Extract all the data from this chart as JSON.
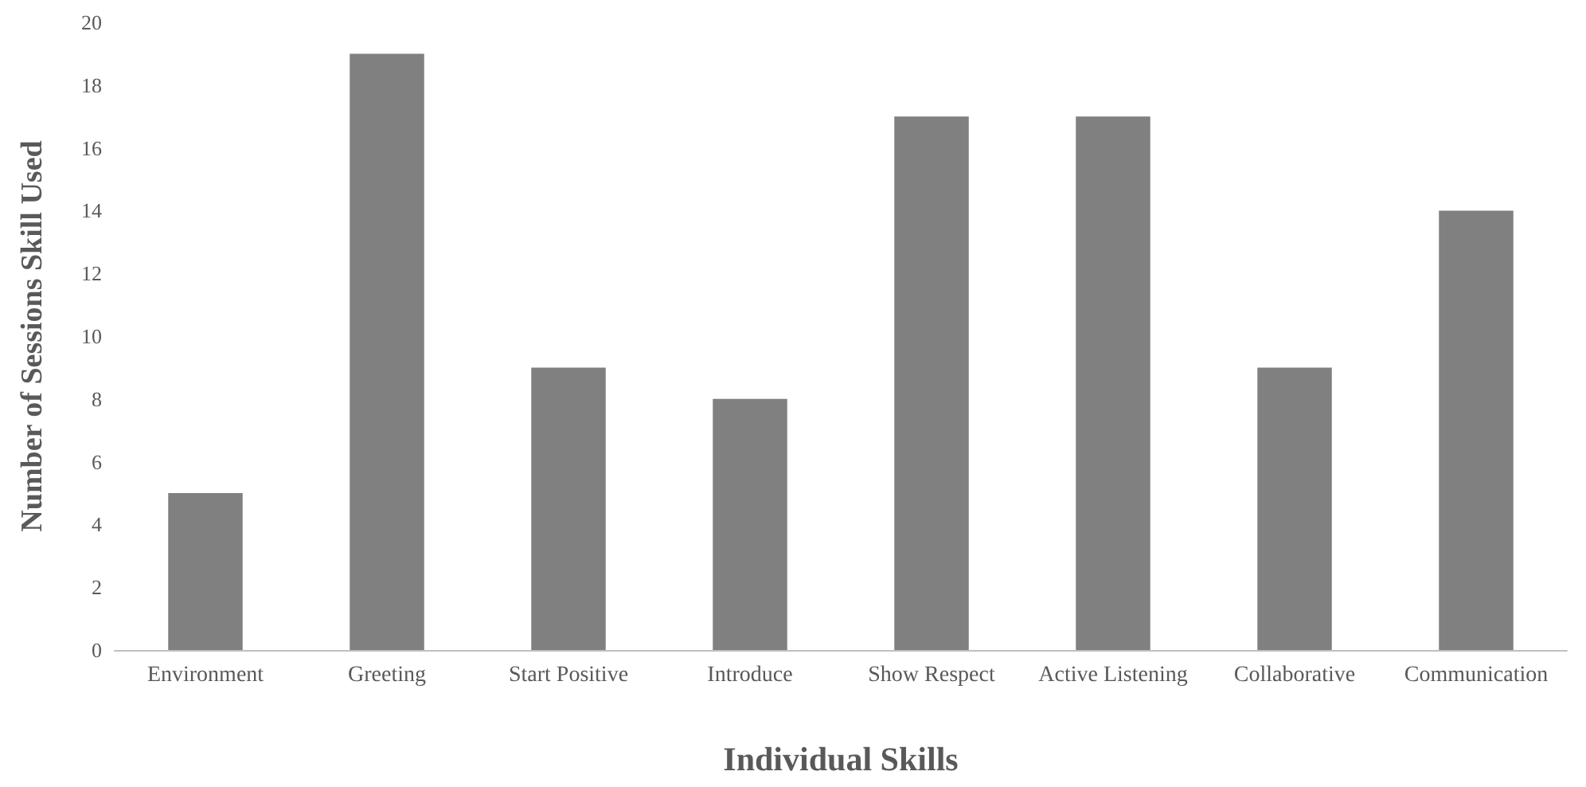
{
  "chart_data": {
    "type": "bar",
    "xlabel": "Individual Skills",
    "ylabel": "Number of Sessions Skill Used",
    "categories": [
      "Environment",
      "Greeting",
      "Start Positive",
      "Introduce",
      "Show Respect",
      "Active Listening",
      "Collaborative",
      "Communication"
    ],
    "values": [
      5,
      19,
      9,
      8,
      17,
      17,
      9,
      14
    ],
    "color": "#808080",
    "ylim": [
      0,
      20
    ],
    "yticks": [
      0,
      2,
      4,
      6,
      8,
      10,
      12,
      14,
      16,
      18,
      20
    ],
    "grid": false
  }
}
